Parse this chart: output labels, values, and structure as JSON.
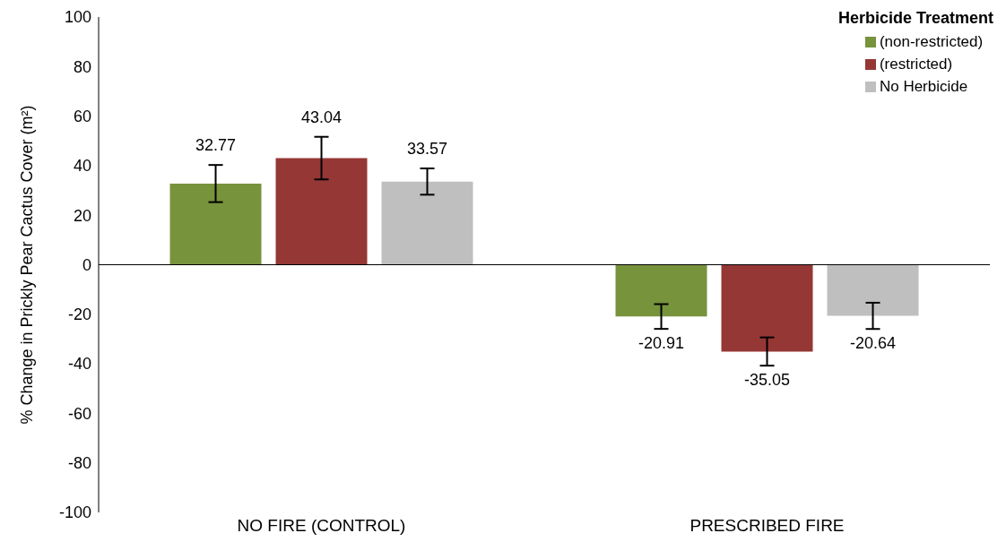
{
  "chart_data": {
    "type": "bar",
    "ylabel": "% Change in Prickly Pear Cactus Cover (m²)",
    "legend_title": "Herbicide Treatment",
    "categories": [
      "NO FIRE (CONTROL)",
      "PRESCRIBED FIRE"
    ],
    "series": [
      {
        "name": "(non-restricted)",
        "color": "#77933c",
        "values": [
          32.77,
          -20.91
        ],
        "errors": [
          7.5,
          5
        ]
      },
      {
        "name": "(restricted)",
        "color": "#953735",
        "values": [
          43.04,
          -35.05
        ],
        "errors": [
          8.6,
          5.7
        ]
      },
      {
        "name": "No Herbicide",
        "color": "#bfbfbf",
        "values": [
          33.57,
          -20.64
        ],
        "errors": [
          5.3,
          5.3
        ]
      }
    ],
    "ylim": [
      -100,
      100
    ],
    "yticks": [
      -100,
      -80,
      -60,
      -40,
      -20,
      0,
      20,
      40,
      60,
      80,
      100
    ],
    "legend": "top right",
    "data_labels": true
  }
}
